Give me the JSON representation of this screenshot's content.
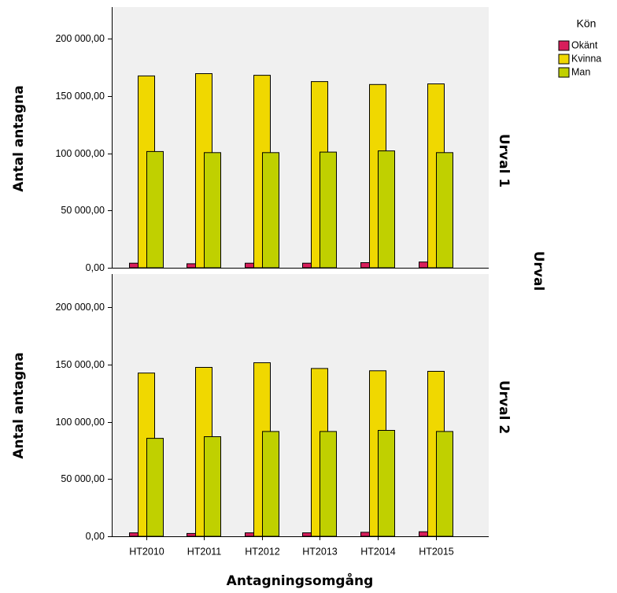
{
  "chart_data": {
    "type": "bar",
    "categories": [
      "HT2010",
      "HT2011",
      "HT2012",
      "HT2013",
      "HT2014",
      "HT2015"
    ],
    "xlabel": "Antagningsomgång",
    "ylabel": "Antal antagna",
    "ylim": [
      0,
      220000
    ],
    "yticks": [
      "0,00",
      "50 000,00",
      "100 000,00",
      "150 000,00",
      "200 000,00"
    ],
    "ytick_values": [
      0,
      50000,
      100000,
      150000,
      200000
    ],
    "legend_title": "Kön",
    "legend_position": "top-right",
    "row_facet_title": "Urval",
    "grid": false,
    "series_names": [
      "Okänt",
      "Kvinna",
      "Man"
    ],
    "series_colors": [
      "#d81e5b",
      "#f0d800",
      "#c0d000"
    ],
    "panels": [
      {
        "label": "Urval 1",
        "series": [
          {
            "name": "Okänt",
            "values": [
              4000,
              3500,
              4000,
              4000,
              4500,
              5000
            ]
          },
          {
            "name": "Kvinna",
            "values": [
              167500,
              169500,
              168000,
              162500,
              160000,
              160500
            ]
          },
          {
            "name": "Man",
            "values": [
              101500,
              100500,
              100500,
              101000,
              102000,
              100500
            ]
          }
        ]
      },
      {
        "label": "Urval 2",
        "series": [
          {
            "name": "Okänt",
            "values": [
              3000,
              2500,
              3000,
              3000,
              3500,
              4000
            ]
          },
          {
            "name": "Kvinna",
            "values": [
              142500,
              147500,
              151500,
              146500,
              144500,
              144000
            ]
          },
          {
            "name": "Man",
            "values": [
              85500,
              87000,
              91500,
              91500,
              92500,
              91500
            ]
          }
        ]
      }
    ]
  }
}
